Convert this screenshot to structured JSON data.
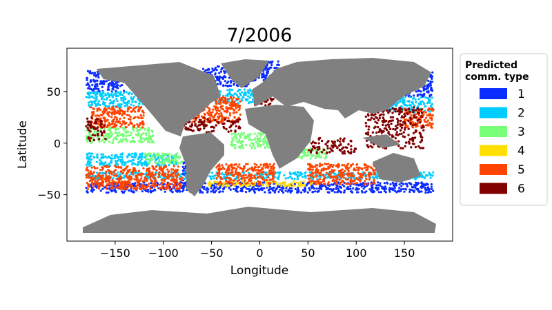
{
  "title": "7/2006",
  "axes": {
    "xlabel": "Longitude",
    "ylabel": "Latitude",
    "xlim": [
      -200,
      200
    ],
    "ylim": [
      -95,
      92
    ],
    "xticks": [
      {
        "value": -150,
        "label": "−150"
      },
      {
        "value": -100,
        "label": "−100"
      },
      {
        "value": -50,
        "label": "−50"
      },
      {
        "value": 0,
        "label": "0"
      },
      {
        "value": 50,
        "label": "50"
      },
      {
        "value": 100,
        "label": "100"
      },
      {
        "value": 150,
        "label": "150"
      }
    ],
    "yticks": [
      {
        "value": 50,
        "label": "50"
      },
      {
        "value": 0,
        "label": "0"
      },
      {
        "value": -50,
        "label": "−50"
      }
    ]
  },
  "legend": {
    "title_lines": [
      "Predicted",
      "comm. type"
    ],
    "placement": "outside-right",
    "items": [
      {
        "label": "1",
        "color": "#0a2cff"
      },
      {
        "label": "2",
        "color": "#00ccff"
      },
      {
        "label": "3",
        "color": "#77ff77"
      },
      {
        "label": "4",
        "color": "#ffe000"
      },
      {
        "label": "5",
        "color": "#ff4400"
      },
      {
        "label": "6",
        "color": "#800000"
      }
    ]
  },
  "colors": {
    "land": "#808080",
    "ocean_background": "#ffffff"
  },
  "map_data": {
    "type": "scatter-map",
    "point_series": [
      {
        "type": "1",
        "regions": [
          {
            "lon": [
              -180,
              -140
            ],
            "lat": [
              50,
              70
            ]
          },
          {
            "lon": [
              -60,
              -10
            ],
            "lat": [
              55,
              75
            ]
          },
          {
            "lon": [
              -10,
              20
            ],
            "lat": [
              60,
              80
            ]
          },
          {
            "lon": [
              150,
              180
            ],
            "lat": [
              45,
              70
            ]
          },
          {
            "lon": [
              -180,
              180
            ],
            "lat": [
              -48,
              -38
            ]
          },
          {
            "lon": [
              -80,
              -65
            ],
            "lat": [
              -45,
              -10
            ]
          }
        ]
      },
      {
        "type": "2",
        "regions": [
          {
            "lon": [
              -180,
              -120
            ],
            "lat": [
              35,
              50
            ]
          },
          {
            "lon": [
              -60,
              -5
            ],
            "lat": [
              38,
              52
            ]
          },
          {
            "lon": [
              130,
              180
            ],
            "lat": [
              30,
              45
            ]
          },
          {
            "lon": [
              -180,
              180
            ],
            "lat": [
              -35,
              -28
            ]
          },
          {
            "lon": [
              -180,
              -85
            ],
            "lat": [
              -22,
              -10
            ]
          }
        ]
      },
      {
        "type": "3",
        "regions": [
          {
            "lon": [
              -180,
              -110
            ],
            "lat": [
              0,
              15
            ]
          },
          {
            "lon": [
              -30,
              10
            ],
            "lat": [
              -5,
              10
            ]
          },
          {
            "lon": [
              40,
              70
            ],
            "lat": [
              -15,
              -5
            ]
          },
          {
            "lon": [
              -120,
              -80
            ],
            "lat": [
              -20,
              -10
            ]
          }
        ]
      },
      {
        "type": "4",
        "regions": [
          {
            "lon": [
              -55,
              55
            ],
            "lat": [
              -42,
              -37
            ]
          }
        ]
      },
      {
        "type": "5",
        "regions": [
          {
            "lon": [
              -180,
              -80
            ],
            "lat": [
              -45,
              -22
            ]
          },
          {
            "lon": [
              -45,
              15
            ],
            "lat": [
              -40,
              -20
            ]
          },
          {
            "lon": [
              50,
              120
            ],
            "lat": [
              -40,
              -20
            ]
          },
          {
            "lon": [
              -175,
              -120
            ],
            "lat": [
              15,
              35
            ]
          },
          {
            "lon": [
              -70,
              -20
            ],
            "lat": [
              20,
              45
            ]
          },
          {
            "lon": [
              150,
              180
            ],
            "lat": [
              15,
              35
            ]
          }
        ]
      },
      {
        "type": "6",
        "regions": [
          {
            "lon": [
              -180,
              -160
            ],
            "lat": [
              0,
              25
            ]
          },
          {
            "lon": [
              -90,
              -20
            ],
            "lat": [
              10,
              25
            ]
          },
          {
            "lon": [
              50,
              100
            ],
            "lat": [
              -10,
              5
            ]
          },
          {
            "lon": [
              110,
              170
            ],
            "lat": [
              -5,
              35
            ]
          },
          {
            "lon": [
              -5,
              15
            ],
            "lat": [
              35,
              45
            ]
          }
        ]
      }
    ]
  }
}
